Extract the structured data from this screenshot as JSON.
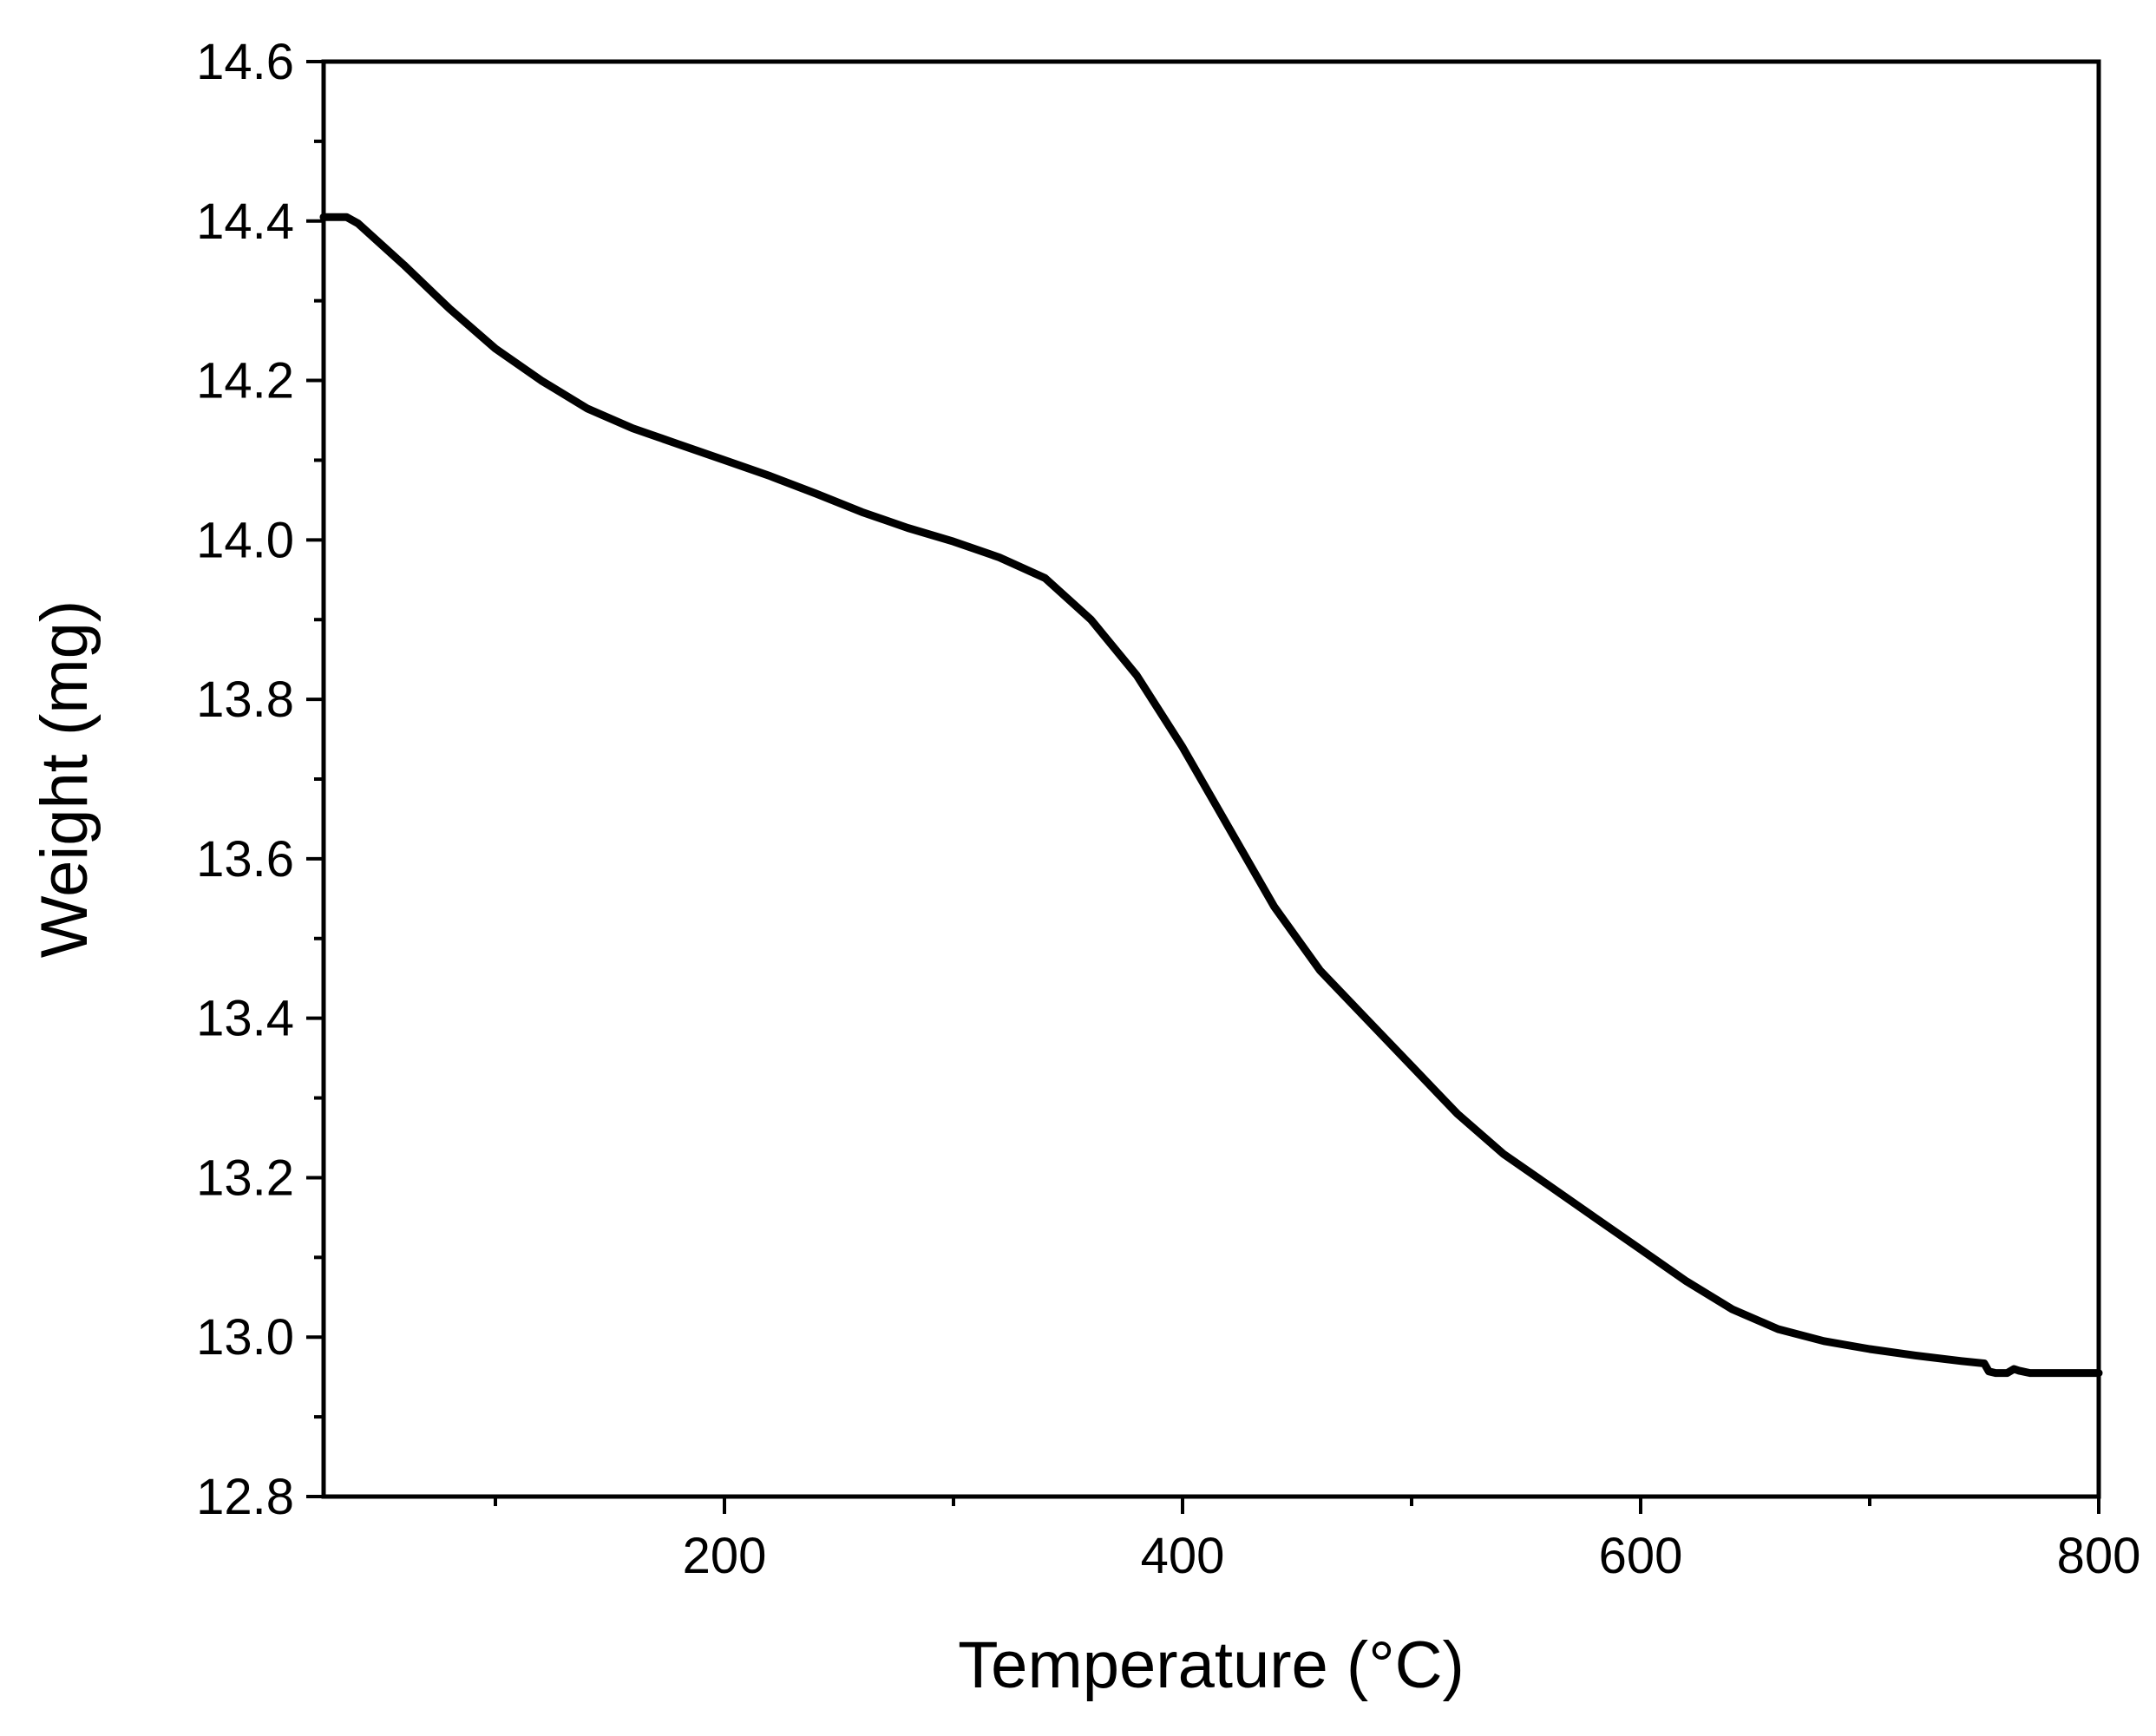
{
  "chart_data": {
    "type": "line",
    "xlabel": "Temperature (°C)",
    "ylabel": "Weight (mg)",
    "xlim": [
      25,
      800
    ],
    "ylim": [
      12.8,
      14.6
    ],
    "x_ticks": [
      200,
      400,
      600,
      800
    ],
    "x_tick_labels": [
      "200",
      "400",
      "600",
      "800"
    ],
    "x_minor_ticks": [
      100,
      300,
      500,
      700
    ],
    "y_ticks": [
      12.8,
      13.0,
      13.2,
      13.4,
      13.6,
      13.8,
      14.0,
      14.2,
      14.4,
      14.6
    ],
    "y_tick_labels": [
      "12.8",
      "13.0",
      "13.2",
      "13.4",
      "13.6",
      "13.8",
      "14.0",
      "14.2",
      "14.4",
      "14.6"
    ],
    "y_minor_ticks": [
      12.9,
      13.1,
      13.3,
      13.5,
      13.7,
      13.9,
      14.1,
      14.3,
      14.5
    ],
    "grid": false,
    "line_color": "#000000",
    "series": [
      {
        "x": [
          25,
          35,
          40,
          60,
          80,
          100,
          120,
          140,
          160,
          180,
          200,
          220,
          240,
          260,
          280,
          300,
          320,
          340,
          360,
          380,
          400,
          420,
          440,
          460,
          480,
          500,
          520,
          540,
          560,
          580,
          600,
          620,
          640,
          660,
          680,
          700,
          720,
          740,
          750,
          752,
          755,
          760,
          763,
          765,
          770,
          780,
          800
        ],
        "y": [
          14.405,
          14.405,
          14.397,
          14.345,
          14.29,
          14.24,
          14.2,
          14.165,
          14.14,
          14.12,
          14.1,
          14.08,
          14.058,
          14.035,
          14.015,
          13.998,
          13.978,
          13.952,
          13.9,
          13.83,
          13.74,
          13.64,
          13.54,
          13.46,
          13.4,
          13.34,
          13.28,
          13.23,
          13.19,
          13.15,
          13.11,
          13.07,
          13.035,
          13.01,
          12.995,
          12.985,
          12.977,
          12.97,
          12.967,
          12.957,
          12.955,
          12.955,
          12.96,
          12.958,
          12.955,
          12.955,
          12.955
        ]
      }
    ]
  }
}
